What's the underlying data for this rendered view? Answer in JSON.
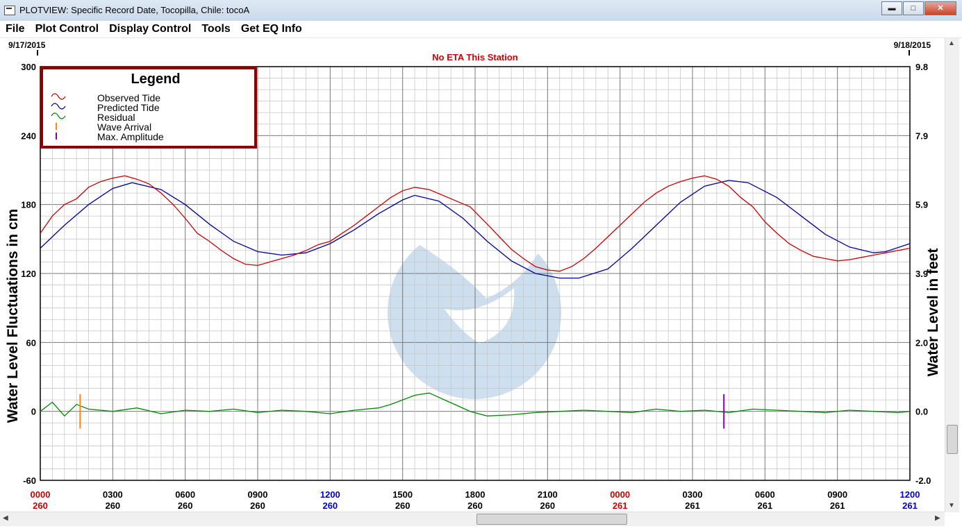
{
  "window": {
    "title": "PLOTVIEW: Specific Record Date, Tocopilla, Chile: tocoA"
  },
  "window_buttons": {
    "minimize": "▬",
    "maximize": "□",
    "close": "✕"
  },
  "menu": [
    "File",
    "Plot Control",
    "Display Control",
    "Tools",
    "Get EQ Info"
  ],
  "dates": {
    "left": "9/17/2015",
    "right": "9/18/2015"
  },
  "eta_text": "No ETA This Station",
  "colors": {
    "observed": "#cc0000",
    "predicted": "#000099",
    "residual": "#008800",
    "wave_arrival": "#ff8800",
    "max_amplitude": "#8800aa",
    "eta": "#cc0000",
    "time_red": "#cc0000",
    "time_blue": "#0000cc",
    "legend_border": "#8b0000"
  },
  "legend": {
    "title": "Legend",
    "items": [
      "Observed Tide",
      "Predicted Tide",
      "Residual",
      "Wave Arrival",
      "Max. Amplitude"
    ]
  },
  "chart_data": {
    "type": "line",
    "title": "No ETA This Station",
    "ylabel": "Water Level Fluctuations in cm",
    "ylabel_right": "Water Level in feet",
    "ylim": [
      -60,
      300
    ],
    "y_ticks": [
      "300",
      "240",
      "180",
      "120",
      "60",
      "0",
      "-60"
    ],
    "y_ticks_right": [
      "9.8",
      "7.9",
      "5.9",
      "3.9",
      "2.0",
      "0.0",
      "-2.0"
    ],
    "x_range_hours": [
      0,
      36
    ],
    "x_ticks": [
      {
        "time": "0000",
        "day": "260",
        "color": "red"
      },
      {
        "time": "0300",
        "day": "260",
        "color": "black"
      },
      {
        "time": "0600",
        "day": "260",
        "color": "black"
      },
      {
        "time": "0900",
        "day": "260",
        "color": "black"
      },
      {
        "time": "1200",
        "day": "260",
        "color": "blue"
      },
      {
        "time": "1500",
        "day": "260",
        "color": "black"
      },
      {
        "time": "1800",
        "day": "260",
        "color": "black"
      },
      {
        "time": "2100",
        "day": "260",
        "color": "black"
      },
      {
        "time": "0000",
        "day": "261",
        "color": "red"
      },
      {
        "time": "0300",
        "day": "261",
        "color": "black"
      },
      {
        "time": "0600",
        "day": "261",
        "color": "black"
      },
      {
        "time": "0900",
        "day": "261",
        "color": "black"
      },
      {
        "time": "1200",
        "day": "261",
        "color": "blue"
      }
    ],
    "series": [
      {
        "name": "Predicted Tide",
        "x": [
          0,
          1,
          2,
          3,
          3.8,
          5,
          6,
          7,
          8,
          9,
          10,
          11,
          12,
          13,
          14,
          15,
          15.5,
          16.5,
          17.5,
          18.5,
          19.5,
          20.5,
          21.5,
          22.3,
          23.5,
          24.5,
          25.5,
          26.5,
          27.5,
          28.5,
          29.3,
          30.5,
          31.5,
          32.5,
          33.5,
          34.5,
          35,
          36
        ],
        "y": [
          142,
          162,
          180,
          194,
          199,
          193,
          180,
          163,
          148,
          139,
          136,
          138,
          146,
          158,
          172,
          184,
          188,
          183,
          168,
          148,
          131,
          120,
          116,
          116,
          124,
          142,
          162,
          182,
          196,
          201,
          199,
          186,
          170,
          154,
          143,
          138,
          139,
          146
        ]
      },
      {
        "name": "Observed Tide",
        "x": [
          0,
          0.5,
          1.0,
          1.5,
          2.0,
          2.5,
          3.0,
          3.5,
          4.0,
          4.5,
          5.0,
          5.5,
          6.0,
          6.5,
          7.0,
          7.5,
          8.0,
          8.5,
          9.0,
          9.5,
          10.0,
          10.5,
          11.0,
          11.5,
          12.0,
          12.5,
          13.0,
          13.5,
          14.0,
          14.5,
          15.0,
          15.5,
          16.1,
          17.8,
          18.5,
          19.0,
          19.5,
          20.0,
          20.5,
          21.0,
          21.5,
          22.0,
          22.5,
          23.0,
          23.5,
          24.0,
          24.5,
          25.0,
          25.5,
          26.0,
          26.5,
          27.0,
          27.5,
          28.0,
          28.5,
          29.0,
          29.5,
          30.0,
          30.5,
          31.0,
          31.5,
          32.0,
          32.5,
          33.0,
          33.5,
          34.0,
          34.5,
          35.0,
          35.5,
          36.0
        ],
        "y": [
          155,
          170,
          180,
          185,
          195,
          200,
          203,
          205,
          202,
          198,
          190,
          180,
          168,
          155,
          148,
          140,
          133,
          128,
          127,
          130,
          133,
          136,
          140,
          145,
          148,
          155,
          162,
          170,
          178,
          186,
          192,
          195,
          193,
          178,
          163,
          152,
          141,
          133,
          126,
          123,
          122,
          126,
          133,
          142,
          152,
          162,
          172,
          182,
          190,
          196,
          200,
          203,
          205,
          202,
          196,
          186,
          178,
          165,
          155,
          146,
          140,
          135,
          133,
          131,
          132,
          134,
          136,
          138,
          140,
          142
        ]
      },
      {
        "name": "Residual",
        "x": [
          0,
          0.5,
          1.0,
          1.5,
          2.0,
          3.0,
          4.0,
          5.0,
          6.0,
          7.0,
          8.0,
          9.0,
          10.0,
          11.0,
          12.0,
          13.0,
          14.0,
          14.5,
          15.0,
          15.5,
          16.1,
          17.8,
          18.5,
          19.5,
          20.5,
          21.5,
          22.5,
          23.5,
          24.5,
          25.5,
          26.5,
          27.5,
          28.5,
          29.5,
          30.5,
          31.5,
          32.5,
          33.5,
          34.5,
          35.5,
          36.0
        ],
        "y": [
          0,
          8,
          -4,
          6,
          2,
          0,
          3,
          -2,
          1,
          0,
          2,
          -1,
          1,
          0,
          -2,
          1,
          3,
          6,
          10,
          14,
          16,
          0,
          -4,
          -3,
          -1,
          0,
          1,
          0,
          -1,
          2,
          0,
          1,
          -1,
          2,
          1,
          0,
          -1,
          1,
          0,
          -1,
          0
        ]
      }
    ],
    "markers": [
      {
        "name": "Wave Arrival",
        "x_hours": 1.65,
        "y_range": [
          -15,
          15
        ]
      },
      {
        "name": "Max. Amplitude",
        "x_hours": 28.3,
        "y_range": [
          -15,
          15
        ]
      }
    ],
    "grid": true
  }
}
